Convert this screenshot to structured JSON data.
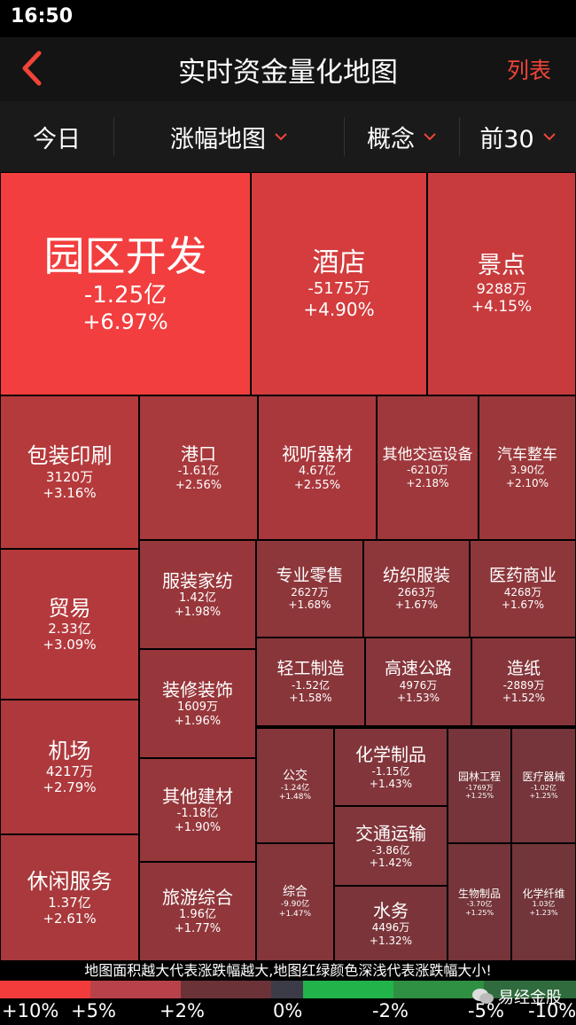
{
  "status": {
    "time": "16:50"
  },
  "header": {
    "title": "实时资金量化地图",
    "list_label": "列表"
  },
  "filters": [
    {
      "label": "今日",
      "dropdown": false
    },
    {
      "label": "涨幅地图",
      "dropdown": true
    },
    {
      "label": "概念",
      "dropdown": true
    },
    {
      "label": "前30",
      "dropdown": true
    }
  ],
  "tiles": [
    {
      "name": "园区开发",
      "amount": "-1.25亿",
      "pct": "+6.97%",
      "change": 6.97
    },
    {
      "name": "酒店",
      "amount": "-5175万",
      "pct": "+4.90%",
      "change": 4.9
    },
    {
      "name": "景点",
      "amount": "9288万",
      "pct": "+4.15%",
      "change": 4.15
    },
    {
      "name": "包装印刷",
      "amount": "3120万",
      "pct": "+3.16%",
      "change": 3.16
    },
    {
      "name": "港口",
      "amount": "-1.61亿",
      "pct": "+2.56%",
      "change": 2.56
    },
    {
      "name": "视听器材",
      "amount": "4.67亿",
      "pct": "+2.55%",
      "change": 2.55
    },
    {
      "name": "其他交运设备",
      "amount": "-6210万",
      "pct": "+2.18%",
      "change": 2.18
    },
    {
      "name": "汽车整车",
      "amount": "3.90亿",
      "pct": "+2.10%",
      "change": 2.1
    },
    {
      "name": "贸易",
      "amount": "2.33亿",
      "pct": "+3.09%",
      "change": 3.09
    },
    {
      "name": "服装家纺",
      "amount": "1.42亿",
      "pct": "+1.98%",
      "change": 1.98
    },
    {
      "name": "专业零售",
      "amount": "2627万",
      "pct": "+1.68%",
      "change": 1.68
    },
    {
      "name": "纺织服装",
      "amount": "2663万",
      "pct": "+1.67%",
      "change": 1.67
    },
    {
      "name": "医药商业",
      "amount": "4268万",
      "pct": "+1.67%",
      "change": 1.67
    },
    {
      "name": "装修装饰",
      "amount": "1609万",
      "pct": "+1.96%",
      "change": 1.96
    },
    {
      "name": "轻工制造",
      "amount": "-1.52亿",
      "pct": "+1.58%",
      "change": 1.58
    },
    {
      "name": "高速公路",
      "amount": "4976万",
      "pct": "+1.53%",
      "change": 1.53
    },
    {
      "name": "造纸",
      "amount": "-2889万",
      "pct": "+1.52%",
      "change": 1.52
    },
    {
      "name": "机场",
      "amount": "4217万",
      "pct": "+2.79%",
      "change": 2.79
    },
    {
      "name": "其他建材",
      "amount": "-1.18亿",
      "pct": "+1.90%",
      "change": 1.9
    },
    {
      "name": "公交",
      "amount": "-1.24亿",
      "pct": "+1.48%",
      "change": 1.48
    },
    {
      "name": "化学制品",
      "amount": "-1.15亿",
      "pct": "+1.43%",
      "change": 1.43
    },
    {
      "name": "园林工程",
      "amount": "-1769万",
      "pct": "+1.25%",
      "change": 1.25
    },
    {
      "name": "医疗器械",
      "amount": "-1.02亿",
      "pct": "+1.25%",
      "change": 1.25
    },
    {
      "name": "交通运输",
      "amount": "-3.86亿",
      "pct": "+1.42%",
      "change": 1.42
    },
    {
      "name": "休闲服务",
      "amount": "1.37亿",
      "pct": "+2.61%",
      "change": 2.61
    },
    {
      "name": "旅游综合",
      "amount": "1.96亿",
      "pct": "+1.77%",
      "change": 1.77
    },
    {
      "name": "综合",
      "amount": "-9.90亿",
      "pct": "+1.47%",
      "change": 1.47
    },
    {
      "name": "水务",
      "amount": "4496万",
      "pct": "+1.32%",
      "change": 1.32
    },
    {
      "name": "生物制品",
      "amount": "-3.70亿",
      "pct": "+1.25%",
      "change": 1.25
    },
    {
      "name": "化学纤维",
      "amount": "1.03亿",
      "pct": "+1.23%",
      "change": 1.23
    }
  ],
  "legend": {
    "note": "地图面积越大代表涨跌幅越大,地图红绿颜色深浅代表涨跌幅大小!",
    "colors": [
      "#f23c3c",
      "#b8424a",
      "#6b3238",
      "#3c3c48",
      "#23b34b",
      "#2f8f42",
      "#2f6b3c"
    ],
    "labels": [
      "+10%",
      "+5%",
      "+2%",
      "0%",
      "-2%",
      "-5%",
      "-10%"
    ],
    "watermark": "易经金股"
  }
}
